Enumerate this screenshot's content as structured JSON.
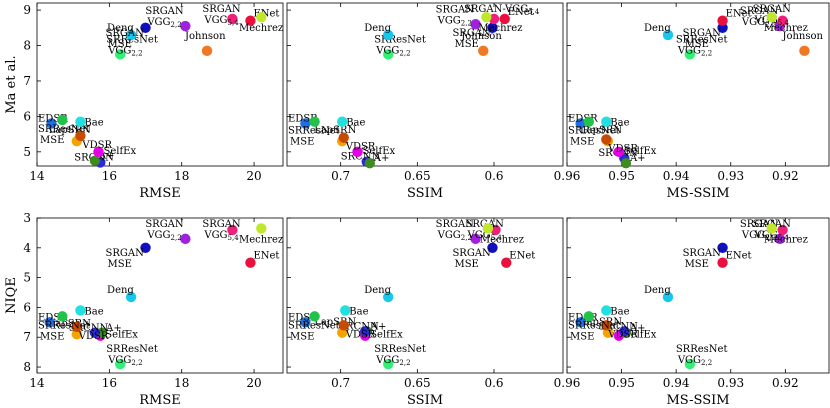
{
  "colors": {
    "SRCNN": "#2a2ad6",
    "A+": "#3c8c1e",
    "LapSRN": "#f5a300",
    "SelfEx": "#e600e6",
    "VDSR": "#c84a00",
    "EDSR": "#1e6fe6",
    "SRResNet MSE": "#22c24a",
    "Bae": "#22dfe0",
    "SRResNet VGG": "#33ee77",
    "Deng": "#16c8ee",
    "SRGAN MSE": "#1010c0",
    "SRGAN VGG22": "#a020e0",
    "Johnson": "#f07820",
    "SRGAN VGG54": "#f0207a",
    "ENet": "#e8103c",
    "Mechrez": "#bfe82c"
  },
  "chart_data": [
    {
      "type": "scatter",
      "id": "ma_rmse",
      "xlabel": "RMSE",
      "ylabel": "Ma et al.",
      "xlim": [
        14,
        20.8
      ],
      "ylim": [
        9.2,
        4.6
      ],
      "x_reversed": false,
      "y_reversed": true,
      "xticks": [
        14,
        16,
        18,
        20
      ],
      "xtick_labels": [
        "14",
        "16",
        "18",
        "20"
      ],
      "yticks": [
        5,
        6,
        7,
        8,
        9
      ],
      "ytick_labels": [
        "5",
        "6",
        "7",
        "8",
        "9"
      ],
      "points": [
        {
          "name": "SRCNN",
          "label": "SRCNN",
          "x": 15.75,
          "y": 4.7
        },
        {
          "name": "A+",
          "label": "A+",
          "x": 15.6,
          "y": 4.75
        },
        {
          "name": "LapSRN",
          "label": "LapSRN",
          "x": 15.1,
          "y": 5.3
        },
        {
          "name": "SelfEx",
          "label": "SelfEx",
          "x": 15.7,
          "y": 5.0
        },
        {
          "name": "VDSR",
          "label": "VDSR",
          "x": 15.2,
          "y": 5.45
        },
        {
          "name": "EDSR",
          "label": "EDSR",
          "x": 14.4,
          "y": 5.8
        },
        {
          "name": "SRResNet MSE",
          "label": "SRResNet",
          "label2": "MSE",
          "x": 14.7,
          "y": 5.9
        },
        {
          "name": "Bae",
          "label": "Bae",
          "x": 15.2,
          "y": 5.85
        },
        {
          "name": "SRResNet VGG",
          "label": "SRResNet",
          "label2": "VGG",
          "sub": "2,2",
          "x": 16.3,
          "y": 7.75
        },
        {
          "name": "Deng",
          "label": "Deng",
          "x": 16.6,
          "y": 8.3
        },
        {
          "name": "SRGAN MSE",
          "label": "SRGAN",
          "label2": "MSE",
          "x": 17.0,
          "y": 8.5
        },
        {
          "name": "SRGAN VGG22",
          "label": "SRGAN",
          "label2": "VGG",
          "sub": "2,2",
          "x": 18.1,
          "y": 8.55
        },
        {
          "name": "Johnson",
          "label": "Johnson",
          "x": 18.7,
          "y": 7.85
        },
        {
          "name": "SRGAN VGG54",
          "label": "SRGAN",
          "label2": "VGG",
          "sub": "5,4",
          "x": 19.4,
          "y": 8.75
        },
        {
          "name": "ENet",
          "label": "ENet",
          "x": 19.9,
          "y": 8.7
        },
        {
          "name": "Mechrez",
          "label": "Mechrez",
          "x": 20.2,
          "y": 8.8
        }
      ]
    },
    {
      "type": "scatter",
      "id": "ma_ssim",
      "xlabel": "SSIM",
      "ylabel": "",
      "xlim": [
        0.735,
        0.555
      ],
      "ylim": [
        9.2,
        4.6
      ],
      "x_reversed": true,
      "y_reversed": true,
      "xticks": [
        0.7,
        0.65,
        0.6
      ],
      "xtick_labels": [
        "0.7",
        "0.65",
        "0.6"
      ],
      "yticks": [],
      "ytick_labels": [],
      "points": [
        {
          "name": "SRCNN",
          "label": "SRCNN",
          "x": 0.683,
          "y": 4.72
        },
        {
          "name": "A+",
          "label": "A+",
          "x": 0.681,
          "y": 4.68
        },
        {
          "name": "LapSRN",
          "label": "LapSRN",
          "x": 0.699,
          "y": 5.3
        },
        {
          "name": "SelfEx",
          "label": "SelfEx",
          "x": 0.689,
          "y": 5.0
        },
        {
          "name": "VDSR",
          "label": "VDSR",
          "x": 0.698,
          "y": 5.4
        },
        {
          "name": "EDSR",
          "label": "EDSR",
          "x": 0.723,
          "y": 5.8
        },
        {
          "name": "SRResNet MSE",
          "label": "SRResNet",
          "label2": "MSE",
          "x": 0.717,
          "y": 5.85
        },
        {
          "name": "Bae",
          "label": "Bae",
          "x": 0.699,
          "y": 5.85
        },
        {
          "name": "SRResNet VGG",
          "label": "SRResNet",
          "label2": "VGG",
          "sub": "2,2",
          "x": 0.669,
          "y": 7.75
        },
        {
          "name": "Deng",
          "label": "Deng",
          "x": 0.669,
          "y": 8.3
        },
        {
          "name": "SRGAN MSE",
          "label": "SRGAN",
          "label2": "MSE",
          "x": 0.601,
          "y": 8.5
        },
        {
          "name": "SRGAN VGG22",
          "label": "SRGAN",
          "label2": "VGG",
          "sub": "2,2",
          "x": 0.612,
          "y": 8.6
        },
        {
          "name": "Johnson",
          "label": "Johnson",
          "x": 0.607,
          "y": 7.85
        },
        {
          "name": "SRGAN VGG54",
          "label": "SRGAN-VGG",
          "sub": "5,4",
          "x": 0.6,
          "y": 8.75
        },
        {
          "name": "ENet",
          "label": "ENet",
          "x": 0.593,
          "y": 8.75
        },
        {
          "name": "Mechrez",
          "label": "Mechrez",
          "x": 0.605,
          "y": 8.8
        }
      ]
    },
    {
      "type": "scatter",
      "id": "ma_msssim",
      "xlabel": "MS-SSIM",
      "ylabel": "",
      "xlim": [
        0.96,
        0.912
      ],
      "ylim": [
        9.2,
        4.6
      ],
      "x_reversed": true,
      "y_reversed": true,
      "xticks": [
        0.96,
        0.95,
        0.94,
        0.93,
        0.92
      ],
      "xtick_labels": [
        "0.96",
        "0.95",
        "0.94",
        "0.93",
        "0.92"
      ],
      "yticks": [],
      "ytick_labels": [],
      "points": [
        {
          "name": "SRCNN",
          "label": "SRCNN",
          "x": 0.9495,
          "y": 4.82
        },
        {
          "name": "A+",
          "label": "A+",
          "x": 0.9492,
          "y": 4.68
        },
        {
          "name": "LapSRN",
          "label": "LapSRN",
          "x": 0.9525,
          "y": 5.3
        },
        {
          "name": "SelfEx",
          "label": "SelfEx",
          "x": 0.9505,
          "y": 5.0
        },
        {
          "name": "VDSR",
          "label": "VDSR",
          "x": 0.9528,
          "y": 5.35
        },
        {
          "name": "EDSR",
          "label": "EDSR",
          "x": 0.9575,
          "y": 5.8
        },
        {
          "name": "SRResNet MSE",
          "label": "SRResNet",
          "label2": "MSE",
          "x": 0.956,
          "y": 5.85
        },
        {
          "name": "Bae",
          "label": "Bae",
          "x": 0.9528,
          "y": 5.85
        },
        {
          "name": "SRResNet VGG",
          "label": "SRResNet",
          "label2": "VGG",
          "sub": "2,2",
          "x": 0.9375,
          "y": 7.75
        },
        {
          "name": "Deng",
          "label": "Deng",
          "x": 0.9415,
          "y": 8.3
        },
        {
          "name": "SRGAN MSE",
          "label": "SRGAN",
          "label2": "MSE",
          "x": 0.9315,
          "y": 8.5
        },
        {
          "name": "SRGAN VGG22",
          "label": "SRGAN",
          "label2": "VGG",
          "sub": "2,2",
          "x": 0.921,
          "y": 8.55
        },
        {
          "name": "Johnson",
          "label": "Johnson",
          "x": 0.9165,
          "y": 7.85
        },
        {
          "name": "SRGAN VGG54",
          "label": "SRGAN",
          "label2": "VGG",
          "sub": "5,4",
          "x": 0.9205,
          "y": 8.7
        },
        {
          "name": "ENet",
          "label": "ENet",
          "x": 0.9315,
          "y": 8.7
        },
        {
          "name": "Mechrez",
          "label": "Mechrez",
          "x": 0.9225,
          "y": 8.8
        }
      ]
    },
    {
      "type": "scatter",
      "id": "niqe_rmse",
      "xlabel": "RMSE",
      "ylabel": "NIQE",
      "xlim": [
        14,
        20.8
      ],
      "ylim": [
        3,
        8.2
      ],
      "x_reversed": false,
      "y_reversed": false,
      "xticks": [
        14,
        16,
        18,
        20
      ],
      "xtick_labels": [
        "14",
        "16",
        "18",
        "20"
      ],
      "yticks": [
        3,
        4,
        5,
        6,
        7,
        8
      ],
      "ytick_labels": [
        "3",
        "4",
        "5",
        "6",
        "7",
        "8"
      ],
      "points": [
        {
          "name": "SRResNet VGG",
          "label": "SRResNet",
          "label2": "VGG",
          "sub": "2,2",
          "x": 16.3,
          "y": 7.9
        },
        {
          "name": "LapSRN",
          "label": "LapSRN",
          "x": 15.1,
          "y": 6.9
        },
        {
          "name": "SelfEx",
          "label": "SelfEx",
          "x": 15.75,
          "y": 6.95
        },
        {
          "name": "A+",
          "label": "A+",
          "x": 15.8,
          "y": 6.85
        },
        {
          "name": "SRCNN",
          "label": "SRCNN",
          "x": 15.6,
          "y": 6.85
        },
        {
          "name": "VDSR",
          "label": "VDSR",
          "x": 15.1,
          "y": 6.65
        },
        {
          "name": "EDSR",
          "label": "EDSR",
          "x": 14.35,
          "y": 6.5
        },
        {
          "name": "SRResNet MSE",
          "label": "SRResNet",
          "label2": "MSE",
          "x": 14.7,
          "y": 6.3
        },
        {
          "name": "Bae",
          "label": "Bae",
          "x": 15.2,
          "y": 6.1
        },
        {
          "name": "Deng",
          "label": "Deng",
          "x": 16.6,
          "y": 5.65
        },
        {
          "name": "SRGAN MSE",
          "label": "SRGAN",
          "label2": "MSE",
          "x": 17.0,
          "y": 4.0
        },
        {
          "name": "SRGAN VGG22",
          "label": "SRGAN",
          "label2": "VGG",
          "sub": "2,2",
          "x": 18.1,
          "y": 3.7
        },
        {
          "name": "SRGAN VGG54",
          "label": "SRGAN",
          "label2": "VGG",
          "sub": "5,4",
          "x": 19.4,
          "y": 3.4
        },
        {
          "name": "ENet",
          "label": "ENet",
          "x": 19.9,
          "y": 4.5
        },
        {
          "name": "Mechrez",
          "label": "Mechrez",
          "x": 20.2,
          "y": 3.35
        }
      ]
    },
    {
      "type": "scatter",
      "id": "niqe_ssim",
      "xlabel": "SSIM",
      "ylabel": "",
      "xlim": [
        0.735,
        0.555
      ],
      "ylim": [
        3,
        8.2
      ],
      "x_reversed": true,
      "y_reversed": false,
      "xticks": [
        0.7,
        0.65,
        0.6
      ],
      "xtick_labels": [
        "0.7",
        "0.65",
        "0.6"
      ],
      "yticks": [],
      "ytick_labels": [],
      "points": [
        {
          "name": "SRResNet VGG",
          "label": "SRResNet",
          "label2": "VGG",
          "sub": "2,2",
          "x": 0.669,
          "y": 7.9
        },
        {
          "name": "LapSRN",
          "label": "LapSRN",
          "x": 0.699,
          "y": 6.85
        },
        {
          "name": "SelfEx",
          "label": "SelfEx",
          "x": 0.684,
          "y": 6.95
        },
        {
          "name": "A+",
          "label": "A+",
          "x": 0.683,
          "y": 6.8
        },
        {
          "name": "SRCNN",
          "label": "SRCNN",
          "x": 0.684,
          "y": 6.8
        },
        {
          "name": "VDSR",
          "label": "VDSR",
          "x": 0.698,
          "y": 6.6
        },
        {
          "name": "EDSR",
          "label": "EDSR",
          "x": 0.723,
          "y": 6.5
        },
        {
          "name": "SRResNet MSE",
          "label": "SRResNet",
          "label2": "MSE",
          "x": 0.717,
          "y": 6.3
        },
        {
          "name": "Bae",
          "label": "Bae",
          "x": 0.697,
          "y": 6.1
        },
        {
          "name": "Deng",
          "label": "Deng",
          "x": 0.669,
          "y": 5.65
        },
        {
          "name": "SRGAN MSE",
          "label": "SRGAN",
          "label2": "MSE",
          "x": 0.601,
          "y": 4.0
        },
        {
          "name": "SRGAN VGG22",
          "label": "SRGAN",
          "label2": "VGG",
          "sub": "2,2",
          "x": 0.612,
          "y": 3.7
        },
        {
          "name": "SRGAN VGG54",
          "label": "SRGAN",
          "label2": "VGG",
          "sub": "5,4",
          "x": 0.599,
          "y": 3.4
        },
        {
          "name": "ENet",
          "label": "ENet",
          "x": 0.592,
          "y": 4.5
        },
        {
          "name": "Mechrez",
          "label": "Mechrez",
          "x": 0.604,
          "y": 3.35
        }
      ]
    },
    {
      "type": "scatter",
      "id": "niqe_msssim",
      "xlabel": "MS-SSIM",
      "ylabel": "",
      "xlim": [
        0.96,
        0.912
      ],
      "ylim": [
        3,
        8.2
      ],
      "x_reversed": true,
      "y_reversed": false,
      "xticks": [
        0.96,
        0.95,
        0.94,
        0.93,
        0.92
      ],
      "xtick_labels": [
        "0.96",
        "0.95",
        "0.94",
        "0.93",
        "0.92"
      ],
      "yticks": [],
      "ytick_labels": [],
      "points": [
        {
          "name": "SRResNet VGG",
          "label": "SRResNet",
          "label2": "VGG",
          "sub": "2,2",
          "x": 0.9375,
          "y": 7.9
        },
        {
          "name": "LapSRN",
          "label": "LapSRN",
          "x": 0.9525,
          "y": 6.85
        },
        {
          "name": "SelfEx",
          "label": "SelfEx",
          "x": 0.9505,
          "y": 6.95
        },
        {
          "name": "A+",
          "label": "A+",
          "x": 0.9492,
          "y": 6.85
        },
        {
          "name": "SRCNN",
          "label": "SRCNN",
          "x": 0.9495,
          "y": 6.8
        },
        {
          "name": "VDSR",
          "label": "VDSR",
          "x": 0.9528,
          "y": 6.6
        },
        {
          "name": "EDSR",
          "label": "EDSR",
          "x": 0.9575,
          "y": 6.5
        },
        {
          "name": "SRResNet MSE",
          "label": "SRResNet",
          "label2": "MSE",
          "x": 0.956,
          "y": 6.3
        },
        {
          "name": "Bae",
          "label": "Bae",
          "x": 0.9528,
          "y": 6.1
        },
        {
          "name": "Deng",
          "label": "Deng",
          "x": 0.9415,
          "y": 5.65
        },
        {
          "name": "SRGAN MSE",
          "label": "SRGAN",
          "label2": "MSE",
          "x": 0.9315,
          "y": 4.0
        },
        {
          "name": "SRGAN VGG22",
          "label": "SRGAN",
          "label2": "VGG",
          "sub": "2,2",
          "x": 0.921,
          "y": 3.7
        },
        {
          "name": "SRGAN VGG54",
          "label": "SRGAN",
          "label2": "VGG",
          "sub": "5,4",
          "x": 0.9205,
          "y": 3.4
        },
        {
          "name": "ENet",
          "label": "ENet",
          "x": 0.9315,
          "y": 4.5
        },
        {
          "name": "Mechrez",
          "label": "Mechrez",
          "x": 0.9225,
          "y": 3.35
        }
      ]
    }
  ]
}
